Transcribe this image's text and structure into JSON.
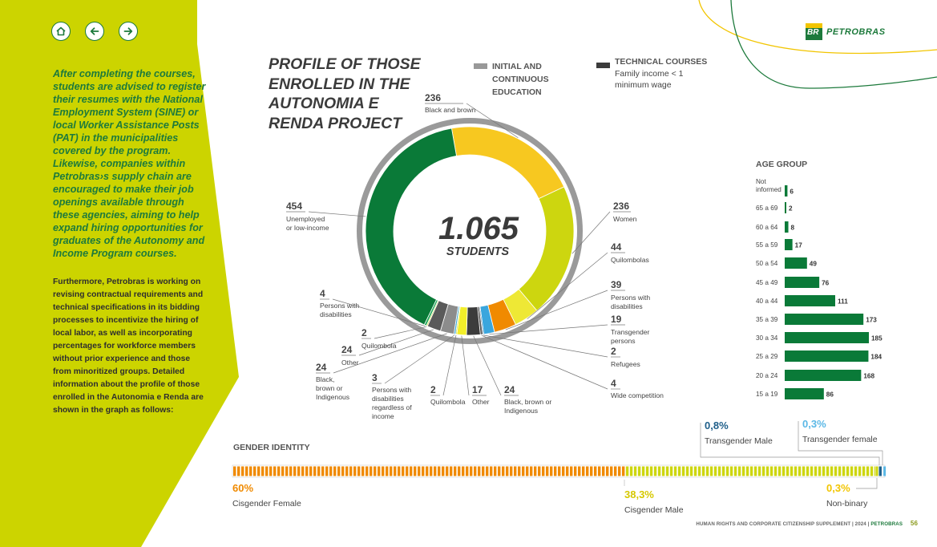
{
  "nav": {
    "home": "home-icon",
    "back": "arrow-left-icon",
    "forward": "arrow-right-icon"
  },
  "intro": {
    "main": "After completing the courses, students are advised to register their resumes with the National Employment System (SINE) or local Worker Assistance Posts (PAT) in the municipalities covered by the program. Likewise, companies within Petrobras›s supply chain are encouraged to make their job openings available through these agencies, aiming to help expand hiring opportunities for graduates of the Autonomy and Income Program courses.",
    "sub": "Furthermore, Petrobras is working on revising contractual requirements and technical specifications in its bidding processes to incentivize the hiring of local labor, as well as incorporating percentages for workforce members without prior experience and those from minoritized groups. Detailed information about the profile of those enrolled in the Autonomia e Renda are shown in the graph as follows:"
  },
  "logo": {
    "mark": "BR",
    "text": "PETROBRAS"
  },
  "colors": {
    "panel": "#ccd400",
    "green": "#0a7a38",
    "yellow": "#f7c820",
    "lime": "#cdd60f",
    "orange": "#f08a00",
    "blue": "#3aa6dd",
    "gray": "#8c8c8c",
    "dark": "#3c3c3c"
  },
  "chart_data": [
    {
      "type": "pie",
      "title": "PROFILE OF THOSE ENROLLED IN THE AUTONOMIA E RENDA PROJECT",
      "center_value": "1.065",
      "center_label": "STUDENTS",
      "legend": [
        {
          "label": "INITIAL AND CONTINUOUS EDUCATION",
          "color": "#999999"
        },
        {
          "label": "TECHNICAL COURSES",
          "sublabel": "Family income < 1 minimum wage",
          "color": "#3c3c3c"
        }
      ],
      "slices": [
        {
          "value": 236,
          "label": "Black and  brown",
          "color": "#f7c820"
        },
        {
          "value": 236,
          "label": "Women",
          "color": "#cdd60f"
        },
        {
          "value": 44,
          "label": "Quilombolas",
          "color": "#eee835"
        },
        {
          "value": 39,
          "label": "Persons with disabilities",
          "color": "#f08a00"
        },
        {
          "value": 19,
          "label": "Transgender persons",
          "color": "#3aa6dd"
        },
        {
          "value": 2,
          "label": "Refugees",
          "color": "#1f5f8a"
        },
        {
          "value": 4,
          "label": "Wide competition",
          "color": "#555555"
        },
        {
          "value": 24,
          "label": "Black, brown or Indigenous",
          "color": "#3c3c3c"
        },
        {
          "value": 17,
          "label": "Other",
          "color": "#f2ee2a"
        },
        {
          "value": 2,
          "label": "Quilombola",
          "color": "#cdd60f"
        },
        {
          "value": 3,
          "label": "Persons with disabilities regardless of income",
          "color": "#3aa6dd"
        },
        {
          "value": 24,
          "label": "Black, brown or Indigenous",
          "color": "#8c8c8c"
        },
        {
          "value": 24,
          "label": "Other",
          "color": "#5a5a5a"
        },
        {
          "value": 2,
          "label": "Quilombola",
          "color": "#cdd60f"
        },
        {
          "value": 4,
          "label": "Persons with disabilities",
          "color": "#22a85a"
        },
        {
          "value": 454,
          "label": "Unemployed or low-income",
          "color": "#0a7a38"
        }
      ]
    },
    {
      "type": "bar",
      "orientation": "horizontal",
      "title": "AGE GROUP",
      "categories": [
        "Not informed",
        "65 a 69",
        "60 a 64",
        "55 a 59",
        "50 a 54",
        "45 a 49",
        "40 a 44",
        "35 a 39",
        "30 a 34",
        "25 a 29",
        "20 a 24",
        "15 a 19"
      ],
      "values": [
        6,
        2,
        8,
        17,
        49,
        76,
        111,
        173,
        185,
        184,
        168,
        86
      ],
      "color": "#0a7a38"
    },
    {
      "type": "bar",
      "orientation": "stacked-horizontal",
      "title": "GENDER IDENTITY",
      "series": [
        {
          "name": "Cisgender Female",
          "value": 60,
          "label": "60%",
          "color": "#f08a00"
        },
        {
          "name": "Cisgender Male",
          "value": 38.3,
          "label": "38,3%",
          "color": "#cdd60f"
        },
        {
          "name": "Non-binary",
          "value": 0.3,
          "label": "0,3%",
          "color": "#cdd60f"
        },
        {
          "name": "Transgender Male",
          "value": 0.8,
          "label": "0,8%",
          "color": "#1f5f8a"
        },
        {
          "name": "Transgender female",
          "value": 0.3,
          "label": "0,3%",
          "color": "#5bb8e6"
        }
      ]
    }
  ],
  "footer": {
    "text": "HUMAN RIGHTS AND CORPORATE CITIZENSHIP SUPPLEMENT | 2024 |",
    "brand": "PETROBRAS",
    "page": "56"
  }
}
